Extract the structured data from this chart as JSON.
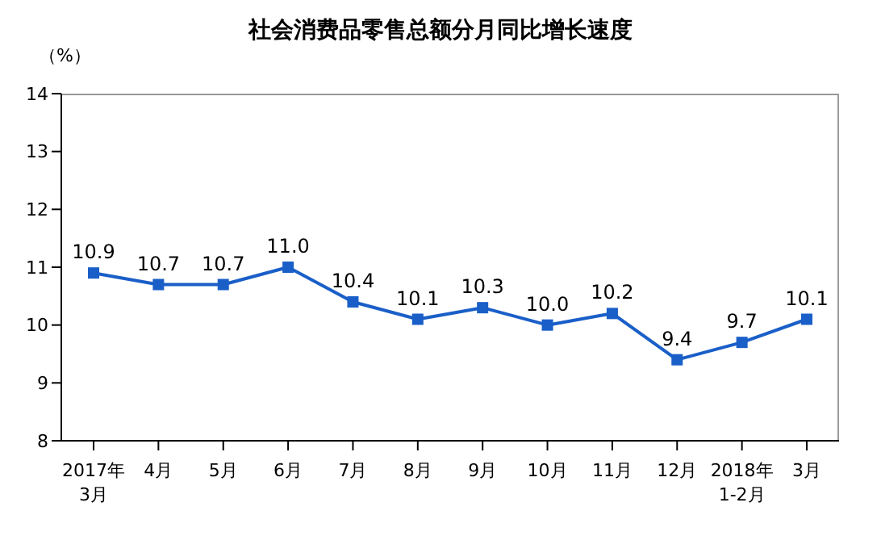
{
  "chart_data": {
    "type": "line",
    "title": "社会消费品零售总额分月同比增长速度",
    "ylabel": "（%）",
    "categories": [
      "2017年\n3月",
      "4月",
      "5月",
      "6月",
      "7月",
      "8月",
      "9月",
      "10月",
      "11月",
      "12月",
      "2018年\n1-2月",
      "3月"
    ],
    "series": [
      {
        "color": "#1a5fc8",
        "values": [
          10.9,
          10.7,
          10.7,
          11.0,
          10.4,
          10.1,
          10.3,
          10.0,
          10.2,
          9.4,
          9.7,
          10.1
        ],
        "value_labels": [
          "10.9",
          "10.7",
          "10.7",
          "11.0",
          "10.4",
          "10.1",
          "10.3",
          "10.0",
          "10.2",
          "9.4",
          "9.7",
          "10.1"
        ]
      }
    ],
    "ylim": [
      8,
      14
    ],
    "yticks": [
      8,
      9,
      10,
      11,
      12,
      13,
      14
    ],
    "grid": false,
    "legend": false,
    "marker": "square",
    "line_style": "solid"
  }
}
